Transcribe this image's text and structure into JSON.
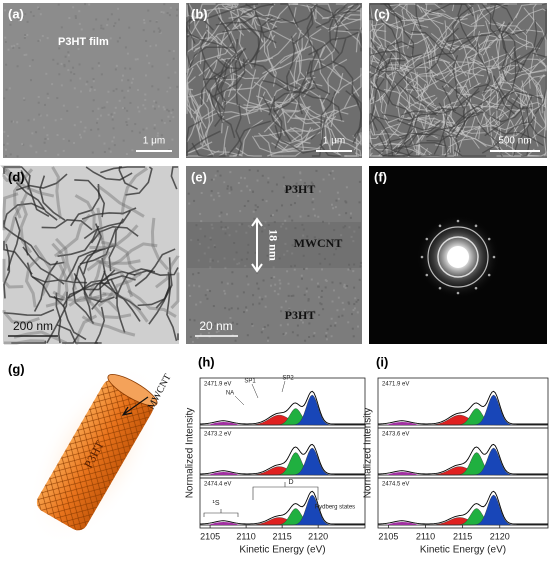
{
  "panels": [
    {
      "label": "(a)",
      "texts": [
        "P3HT film"
      ],
      "scale_bar": "1 μm"
    },
    {
      "label": "(b)",
      "scale_bar": "1 μm"
    },
    {
      "label": "(c)",
      "scale_bar": "500 nm"
    },
    {
      "label": "(d)",
      "scale_bar": "200 nm"
    },
    {
      "label": "(e)",
      "texts": [
        "P3HT",
        "MWCNT",
        "P3HT"
      ],
      "measurement": "18 nm",
      "scale_bar": "20 nm"
    },
    {
      "label": "(f)"
    },
    {
      "label": "(g)",
      "texts": [
        "MWCNT",
        "P3HT"
      ]
    },
    {
      "label": "(h)",
      "y_label": "Normalized Intensity",
      "x_label": "Kinetic Energy (eV)",
      "xlim": [
        2103.6,
        2126.5
      ],
      "xticks": [
        2105,
        2110,
        2115,
        2120
      ],
      "energies": [
        "2471.9 eV",
        "2473.2 eV",
        "2474.4 eV"
      ],
      "annotations": [
        "NA",
        "SP1",
        "SP2",
        "¹S",
        "D",
        "Rydberg states"
      ]
    },
    {
      "label": "(i)",
      "y_label": "Normalized Intensity",
      "x_label": "Kinetic Energy (eV)",
      "xlim": [
        2103.6,
        2126.5
      ],
      "xticks": [
        2105,
        2110,
        2115,
        2120
      ],
      "energies": [
        "2471.9 eV",
        "2473.6 eV",
        "2474.5 eV"
      ]
    }
  ]
}
